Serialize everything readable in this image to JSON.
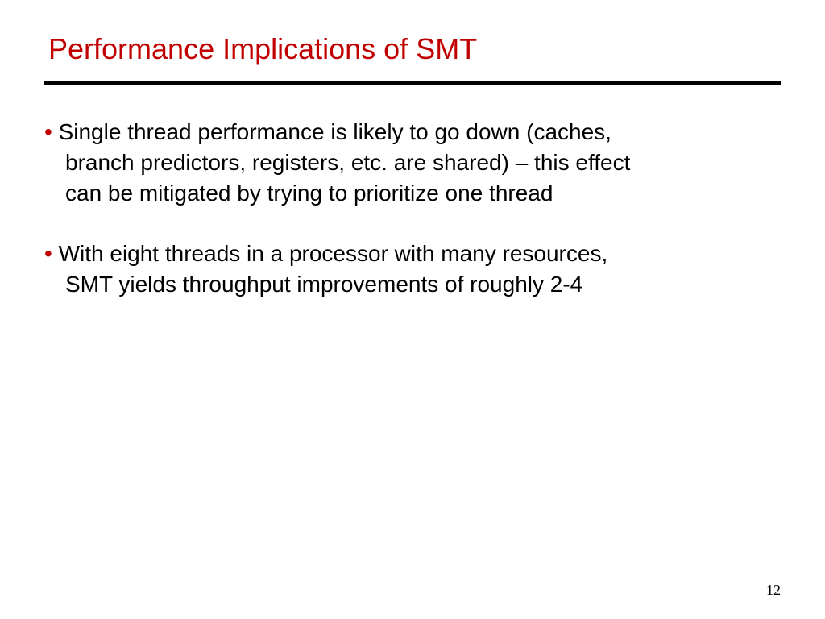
{
  "slide": {
    "title": "Performance Implications of SMT",
    "title_color": "#c00000",
    "title_fontsize": 36,
    "underline_color": "#000000",
    "underline_height": 5,
    "background_color": "#ffffff",
    "bullets": [
      {
        "marker": "•",
        "line1": " Single thread performance is likely to go down (caches,",
        "line2": "branch predictors, registers, etc. are shared) – this effect",
        "line3": "can be mitigated by trying to prioritize one thread"
      },
      {
        "marker": "•",
        "line1": " With eight threads in a processor with many resources,",
        "line2": "SMT yields throughput improvements of roughly 2-4",
        "line3": ""
      }
    ],
    "bullet_color": "#c00000",
    "body_fontsize": 28,
    "body_color": "#000000",
    "page_number": "12",
    "page_number_fontsize": 18
  }
}
